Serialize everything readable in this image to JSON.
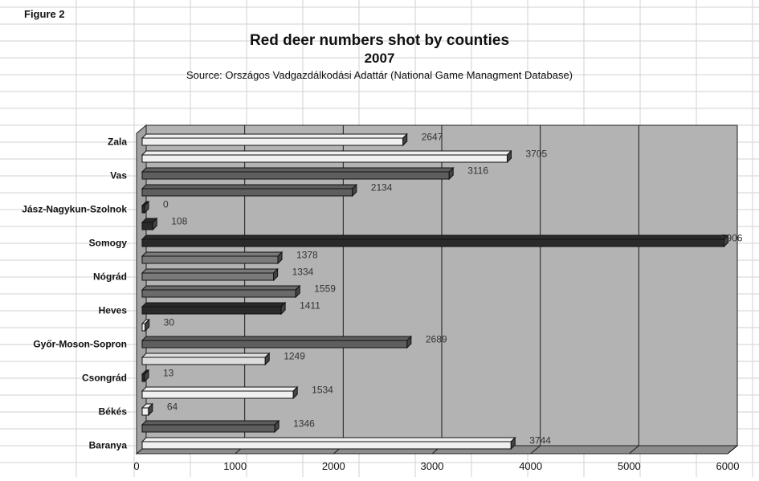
{
  "figure_label": "Figure 2",
  "chart_data": {
    "type": "bar",
    "orientation": "horizontal",
    "title": "Red deer numbers shot by counties",
    "subtitle": "2007",
    "source": "Source: Országos Vadgazdálkodási Adattár (National Game Managment Database)",
    "xlabel": "",
    "ylabel": "",
    "xlim": [
      0,
      6000
    ],
    "xticks": [
      0,
      1000,
      2000,
      3000,
      4000,
      5000,
      6000
    ],
    "grid": true,
    "county_labels": [
      "Zala",
      "Vas",
      "Jász-Nagykun-Szolnok",
      "Somogy",
      "Nógrád",
      "Heves",
      "Győr-Moson-Sopron",
      "Csongrád",
      "Békés",
      "Baranya"
    ],
    "bars": [
      {
        "value": 2647,
        "label": "2647",
        "color": "#f0f0f0"
      },
      {
        "value": 3705,
        "label": "3705",
        "color": "#f0f0f0"
      },
      {
        "value": 3116,
        "label": "3116",
        "color": "#5e5e5e"
      },
      {
        "value": 2134,
        "label": "2134",
        "color": "#5e5e5e"
      },
      {
        "value": 0,
        "label": "0",
        "color": "#2a2a2a"
      },
      {
        "value": 108,
        "label": "108",
        "color": "#2a2a2a"
      },
      {
        "value": 5906,
        "label": "5906",
        "color": "#2a2a2a"
      },
      {
        "value": 1378,
        "label": "1378",
        "color": "#7a7a7a"
      },
      {
        "value": 1334,
        "label": "1334",
        "color": "#7a7a7a"
      },
      {
        "value": 1559,
        "label": "1559",
        "color": "#6a6a6a"
      },
      {
        "value": 1411,
        "label": "1411",
        "color": "#2a2a2a"
      },
      {
        "value": 30,
        "label": "30",
        "color": "#f0f0f0"
      },
      {
        "value": 2689,
        "label": "2689",
        "color": "#5e5e5e"
      },
      {
        "value": 1249,
        "label": "1249",
        "color": "#dddddd"
      },
      {
        "value": 13,
        "label": "13",
        "color": "#2a2a2a"
      },
      {
        "value": 1534,
        "label": "1534",
        "color": "#f0f0f0"
      },
      {
        "value": 64,
        "label": "64",
        "color": "#f0f0f0"
      },
      {
        "value": 1346,
        "label": "1346",
        "color": "#5e5e5e"
      },
      {
        "value": 3744,
        "label": "3744",
        "color": "#f0f0f0"
      }
    ],
    "colors": {
      "plot_bg": "#b3b3b3",
      "gridline": "#1a1a1a",
      "floor": "#8c8c8c"
    }
  }
}
